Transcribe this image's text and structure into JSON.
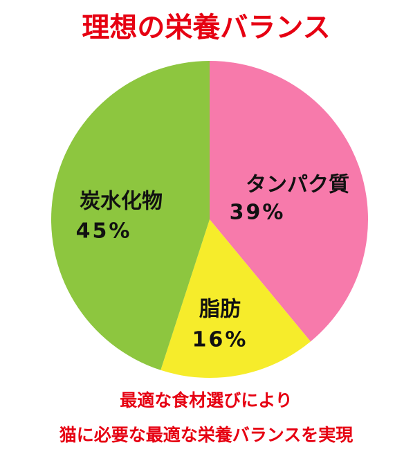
{
  "chart_data": {
    "type": "pie",
    "title": "理想の栄養バランス",
    "categories": [
      "タンパク質",
      "脂肪",
      "炭水化物"
    ],
    "values": [
      39,
      16,
      45
    ],
    "value_labels": [
      "39%",
      "16%",
      "45%"
    ],
    "colors": [
      "#f77aab",
      "#f6ec2b",
      "#8dc63f"
    ],
    "annotations": [
      "最適な食材選びにより",
      "猫に必要な最適な栄養バランスを実現"
    ]
  }
}
